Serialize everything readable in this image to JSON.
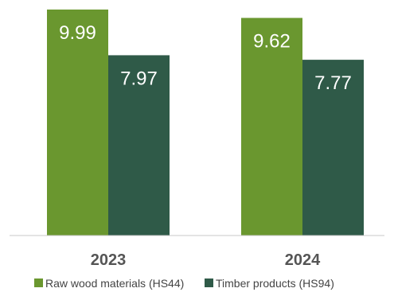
{
  "chart_data": {
    "type": "bar",
    "categories": [
      "2023",
      "2024"
    ],
    "series": [
      {
        "name": "Raw wood materials (HS44)",
        "values": [
          9.99,
          9.62
        ],
        "color": "#6a972f"
      },
      {
        "name": "Timber products (HS94)",
        "values": [
          7.97,
          7.77
        ],
        "color": "#2f5a48"
      }
    ],
    "title": "",
    "xlabel": "",
    "ylabel": "",
    "ylim": [
      0,
      10.5
    ],
    "grid": false,
    "legend_position": "bottom",
    "axis_color": "#c8c8c8"
  }
}
